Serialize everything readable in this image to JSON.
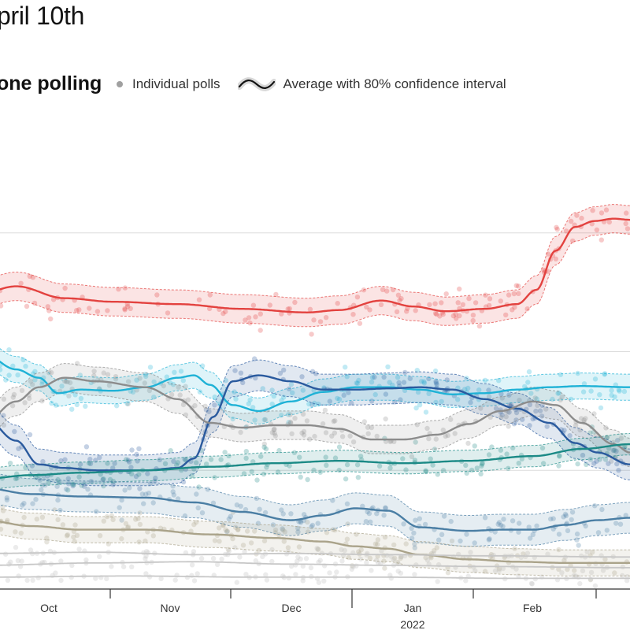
{
  "heading": "pril 10th",
  "subtitle": "one polling",
  "legend": {
    "polls_label": "Individual polls",
    "avg_label": "Average with 80% confidence interval"
  },
  "colors": {
    "red": "#e3423f",
    "cyan": "#1fb2d6",
    "navy": "#2a5a9e",
    "gray": "#8c8c8c",
    "teal": "#1b8a86",
    "steel": "#4a7ea4",
    "khaki": "#aaa38a",
    "lightgray": "#c7c7c7"
  },
  "chart_data": {
    "type": "line",
    "x_ticks": [
      {
        "label": "Oct",
        "sub": ""
      },
      {
        "label": "Nov",
        "sub": ""
      },
      {
        "label": "Dec",
        "sub": ""
      },
      {
        "label": "Jan",
        "sub": "2022"
      },
      {
        "label": "Feb",
        "sub": ""
      }
    ],
    "x_range": [
      0,
      195
    ],
    "y_range": [
      0,
      40
    ],
    "gridlines": [
      10,
      20,
      30
    ],
    "series": [
      {
        "key": "red",
        "color": "#e3423f",
        "band": 1.2,
        "x": [
          -5,
          5,
          20,
          35,
          55,
          75,
          95,
          105,
          118,
          128,
          138,
          150,
          160,
          166,
          172,
          178,
          184,
          190,
          195
        ],
        "y": [
          25.0,
          25.5,
          24.5,
          24.2,
          24.0,
          23.6,
          23.3,
          23.5,
          24.3,
          23.8,
          23.4,
          23.6,
          24.0,
          25.2,
          28.5,
          30.5,
          31.0,
          31.2,
          31.1
        ]
      },
      {
        "key": "cyan",
        "color": "#1fb2d6",
        "band": 1.1,
        "x": [
          -5,
          5,
          12,
          18,
          25,
          35,
          45,
          55,
          60,
          65,
          72,
          80,
          90,
          100,
          110,
          120,
          130,
          140,
          150,
          160,
          170,
          180,
          195
        ],
        "y": [
          19.8,
          18.5,
          17.8,
          16.5,
          16.8,
          16.7,
          17.0,
          17.8,
          18.0,
          17.2,
          15.5,
          15.0,
          15.8,
          16.6,
          17.0,
          17.0,
          16.8,
          16.4,
          16.5,
          16.8,
          17.0,
          17.1,
          17.0
        ]
      },
      {
        "key": "navy",
        "color": "#2a5a9e",
        "band": 1.3,
        "x": [
          -5,
          5,
          12,
          20,
          30,
          45,
          55,
          60,
          66,
          72,
          80,
          90,
          100,
          110,
          120,
          130,
          140,
          150,
          160,
          170,
          178,
          185,
          195
        ],
        "y": [
          14.5,
          12.5,
          10.5,
          10.2,
          10.0,
          10.0,
          10.2,
          11.0,
          14.5,
          17.5,
          18.0,
          17.5,
          16.8,
          16.8,
          16.9,
          17.0,
          16.8,
          16.0,
          15.2,
          14.0,
          12.3,
          11.5,
          10.5
        ]
      },
      {
        "key": "gray",
        "color": "#8c8c8c",
        "band": 1.2,
        "x": [
          -5,
          5,
          12,
          20,
          30,
          45,
          55,
          65,
          75,
          85,
          95,
          105,
          115,
          125,
          135,
          145,
          155,
          165,
          172,
          180,
          190,
          195
        ],
        "y": [
          14.0,
          15.8,
          17.0,
          17.8,
          17.5,
          17.0,
          16.0,
          14.0,
          13.6,
          13.8,
          13.8,
          13.5,
          12.6,
          12.6,
          13.0,
          13.9,
          15.0,
          15.8,
          15.5,
          14.0,
          12.2,
          11.5
        ]
      },
      {
        "key": "teal",
        "color": "#1b8a86",
        "band": 0.9,
        "x": [
          -5,
          10,
          25,
          45,
          65,
          85,
          105,
          125,
          145,
          165,
          180,
          195
        ],
        "y": [
          9.3,
          9.6,
          9.8,
          10.0,
          10.3,
          10.6,
          10.8,
          10.6,
          10.8,
          11.2,
          11.8,
          12.2
        ]
      },
      {
        "key": "steel",
        "color": "#4a7ea4",
        "band": 1.3,
        "x": [
          -5,
          10,
          25,
          45,
          60,
          75,
          90,
          100,
          110,
          120,
          130,
          145,
          155,
          165,
          175,
          185,
          195
        ],
        "y": [
          8.5,
          8.0,
          7.8,
          7.7,
          7.3,
          6.5,
          5.8,
          6.2,
          6.8,
          6.6,
          5.2,
          4.9,
          5.0,
          5.0,
          5.4,
          5.8,
          6.0
        ]
      },
      {
        "key": "khaki",
        "color": "#aaa38a",
        "band": 1.1,
        "x": [
          -5,
          10,
          25,
          45,
          65,
          85,
          100,
          110,
          120,
          130,
          145,
          160,
          175,
          195
        ],
        "y": [
          5.8,
          5.3,
          5.0,
          5.0,
          4.6,
          4.3,
          4.0,
          3.6,
          3.4,
          2.9,
          2.5,
          2.3,
          2.2,
          2.2
        ]
      },
      {
        "key": "lg1",
        "color": "#c7c7c7",
        "band": 0,
        "x": [
          -5,
          30,
          60,
          90,
          120,
          150,
          195
        ],
        "y": [
          3.0,
          3.1,
          2.9,
          3.0,
          2.9,
          2.8,
          2.7
        ]
      },
      {
        "key": "lg2",
        "color": "#c7c7c7",
        "band": 0,
        "x": [
          -5,
          30,
          60,
          90,
          120,
          150,
          195
        ],
        "y": [
          2.0,
          2.2,
          2.3,
          2.1,
          2.0,
          1.9,
          1.8
        ]
      },
      {
        "key": "lg3",
        "color": "#c7c7c7",
        "band": 0,
        "x": [
          -5,
          40,
          80,
          120,
          160,
          195
        ],
        "y": [
          1.0,
          1.1,
          1.0,
          1.0,
          0.9,
          0.9
        ]
      }
    ]
  }
}
